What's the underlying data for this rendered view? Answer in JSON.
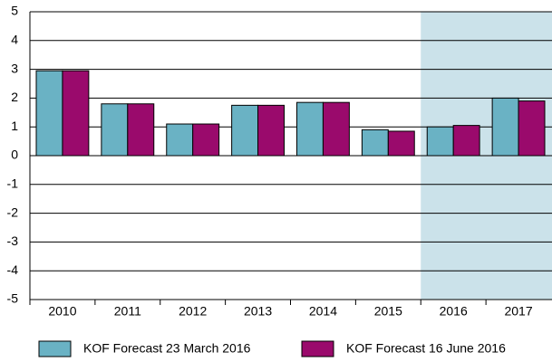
{
  "chart_data": {
    "type": "bar",
    "categories": [
      "2010",
      "2011",
      "2012",
      "2013",
      "2014",
      "2015",
      "2016",
      "2017"
    ],
    "series": [
      {
        "name": "KOF Forecast 23 March 2016",
        "color": "#6ab2c4",
        "values": [
          2.95,
          1.8,
          1.1,
          1.75,
          1.85,
          0.9,
          1.0,
          2.0
        ]
      },
      {
        "name": "KOF Forecast 16 June 2016",
        "color": "#9a0a6c",
        "values": [
          2.95,
          1.8,
          1.1,
          1.75,
          1.85,
          0.85,
          1.05,
          1.9
        ]
      }
    ],
    "ylim": [
      -5,
      5
    ],
    "yticks": [
      -5,
      -4,
      -3,
      -2,
      -1,
      0,
      1,
      2,
      3,
      4,
      5
    ],
    "grid": true,
    "shaded_categories": [
      "2016",
      "2017"
    ],
    "shade_color": "#cbe2ea",
    "legend": "bottom"
  }
}
